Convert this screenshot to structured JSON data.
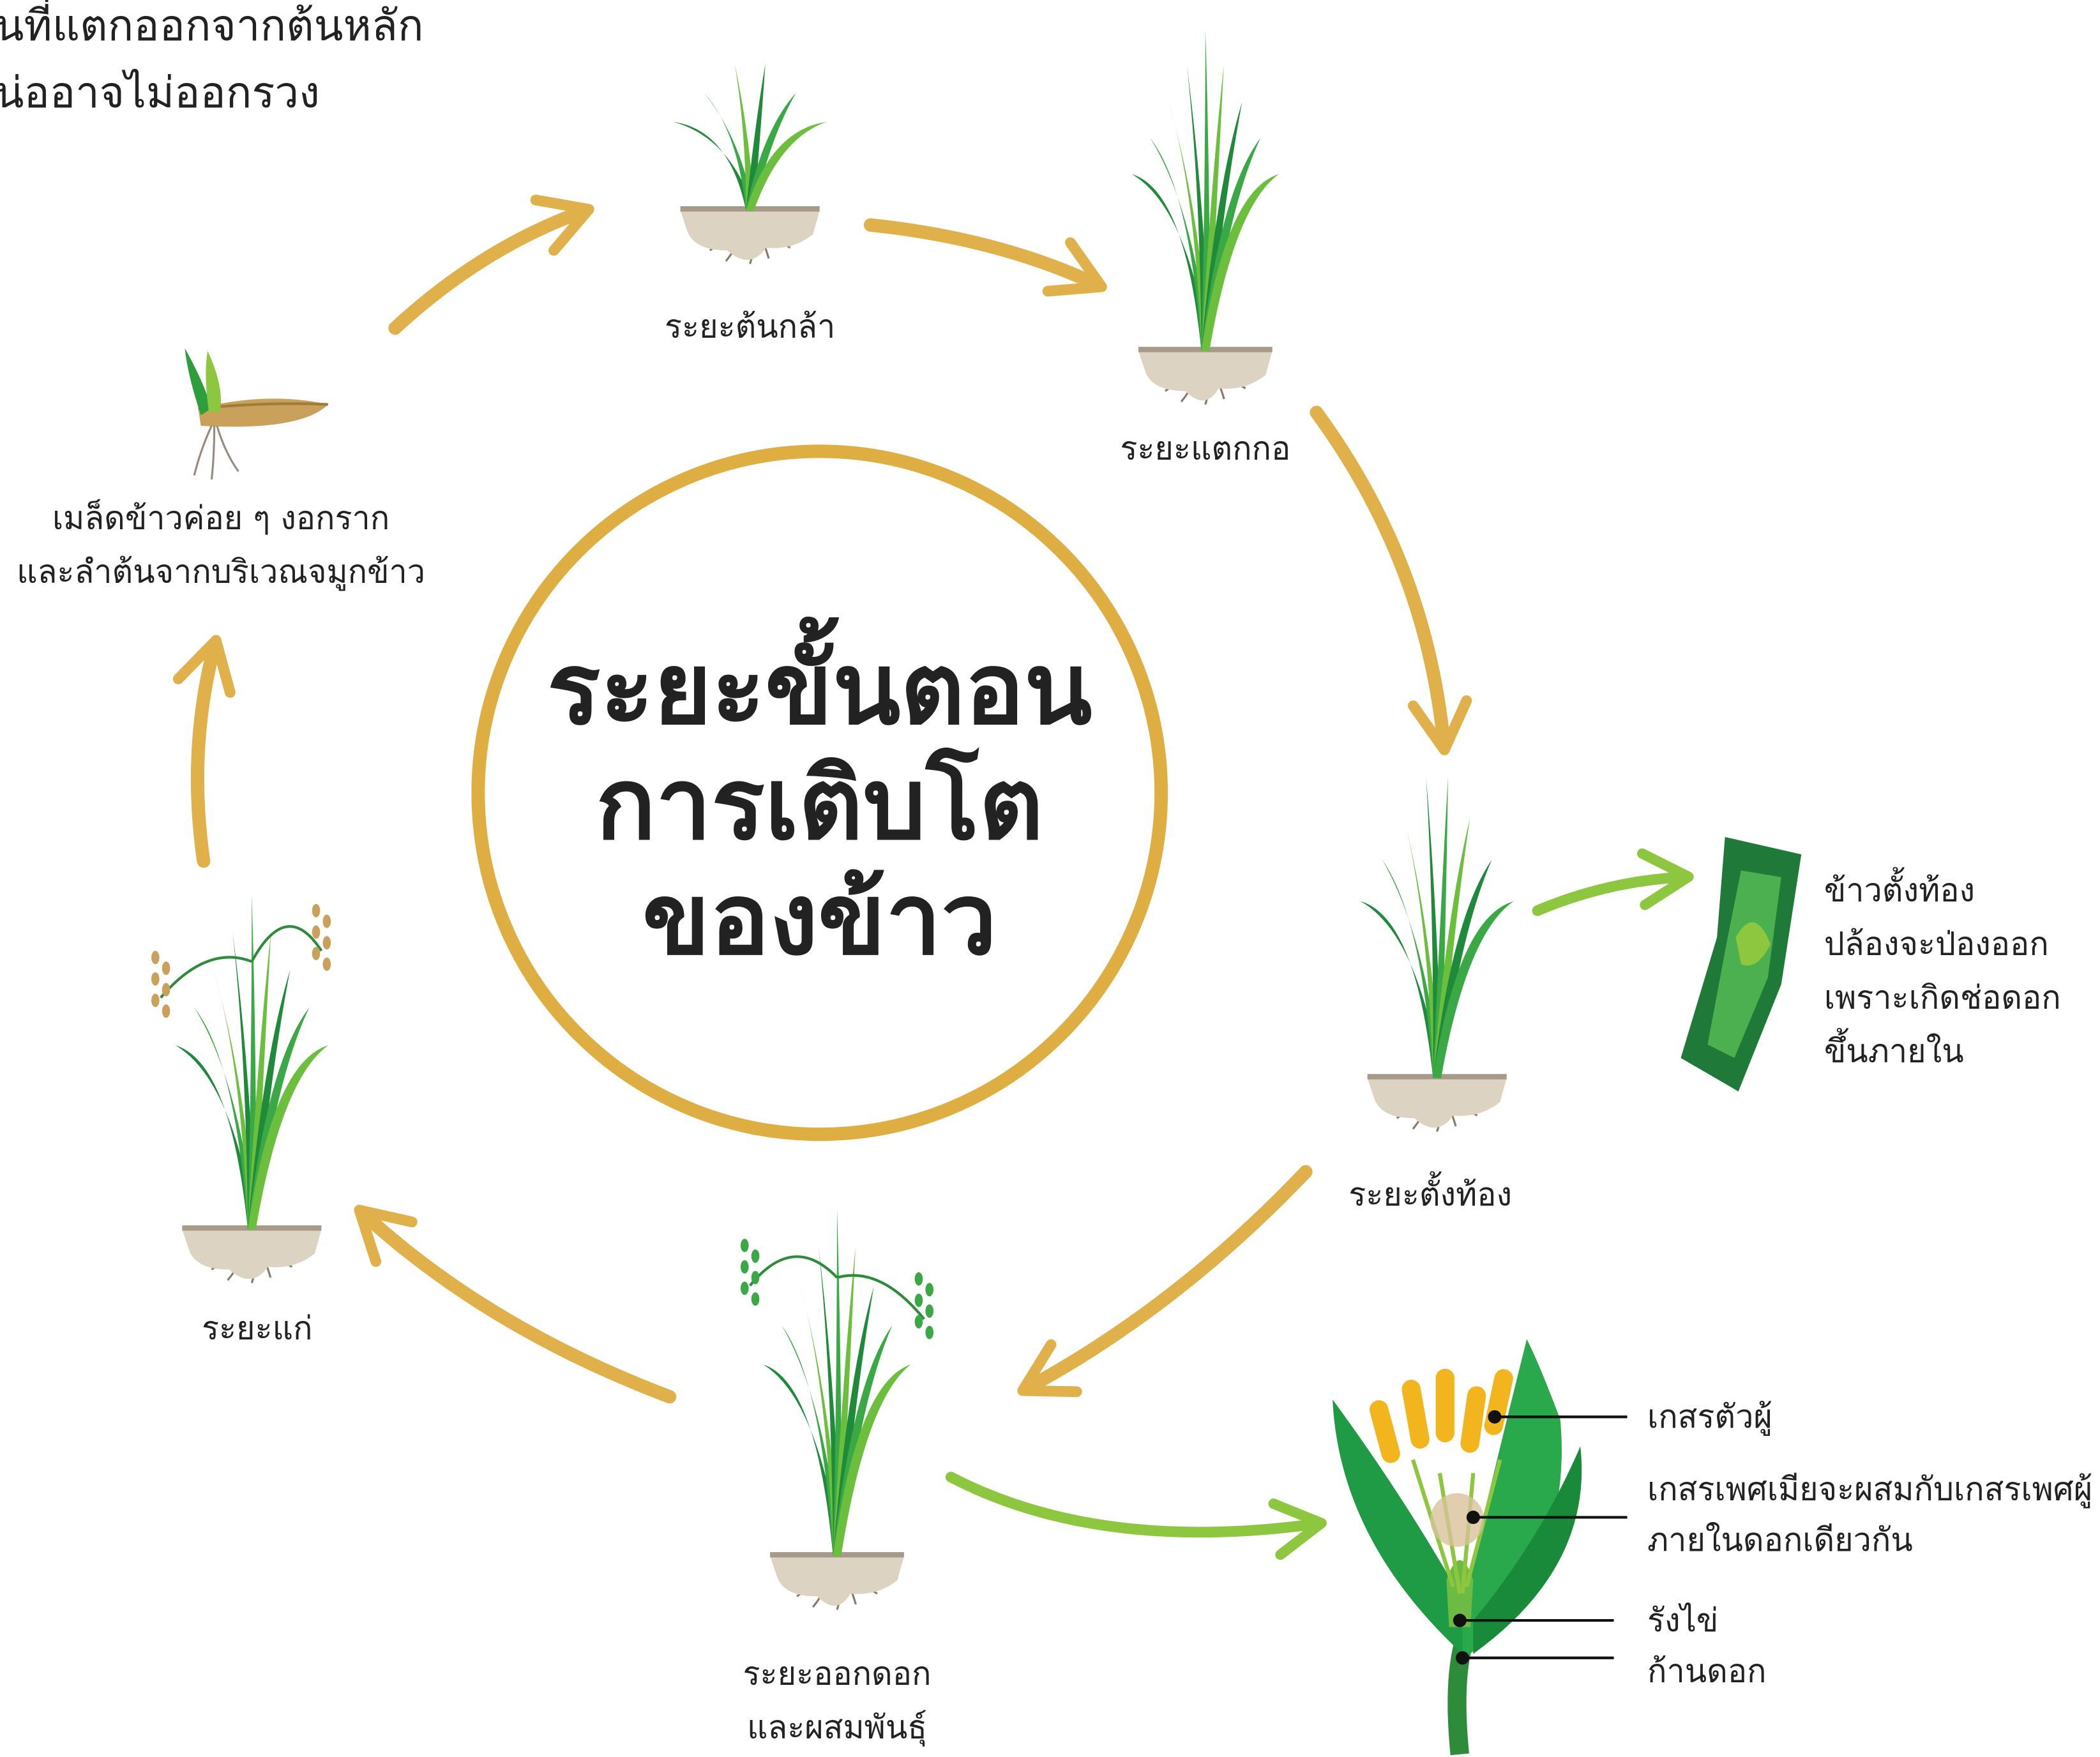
{
  "top_note": {
    "lines": [
      "นที่แตกออกจากต้นหลัก",
      "น่ออาจไม่ออกรวง"
    ]
  },
  "title": {
    "lines": [
      "ระยะขั้นตอน",
      "การเติบโต",
      "ของข้าว"
    ]
  },
  "stages": [
    {
      "label": [
        "เมล็ดข้าวค่อย ๆ งอกราก",
        "และลำต้นจากบริเวณจมูกข้าว"
      ]
    },
    {
      "label": [
        "ระยะต้นกล้า"
      ]
    },
    {
      "label": [
        "ระยะแตกกอ"
      ]
    },
    {
      "label": [
        "ระยะตั้งท้อง"
      ]
    },
    {
      "label": [
        "ระยะออกดอก",
        "และผสมพันธุ์"
      ]
    },
    {
      "label": [
        "ระยะแก่"
      ]
    }
  ],
  "booting_detail": {
    "lines": [
      "ข้าวตั้งท้อง",
      "ปล้องจะป่องออก",
      "เพราะเกิดช่อดอก",
      "ขึ้นภายใน"
    ]
  },
  "flower_parts": [
    {
      "lines": [
        "เกสรตัวผู้"
      ]
    },
    {
      "lines": [
        "เกสรเพศเมียจะผสมกับเกสรเพศผู้",
        "ภายในดอกเดียวกัน"
      ]
    },
    {
      "lines": [
        "รังไข่"
      ]
    },
    {
      "lines": [
        "ก้านดอก"
      ]
    }
  ]
}
